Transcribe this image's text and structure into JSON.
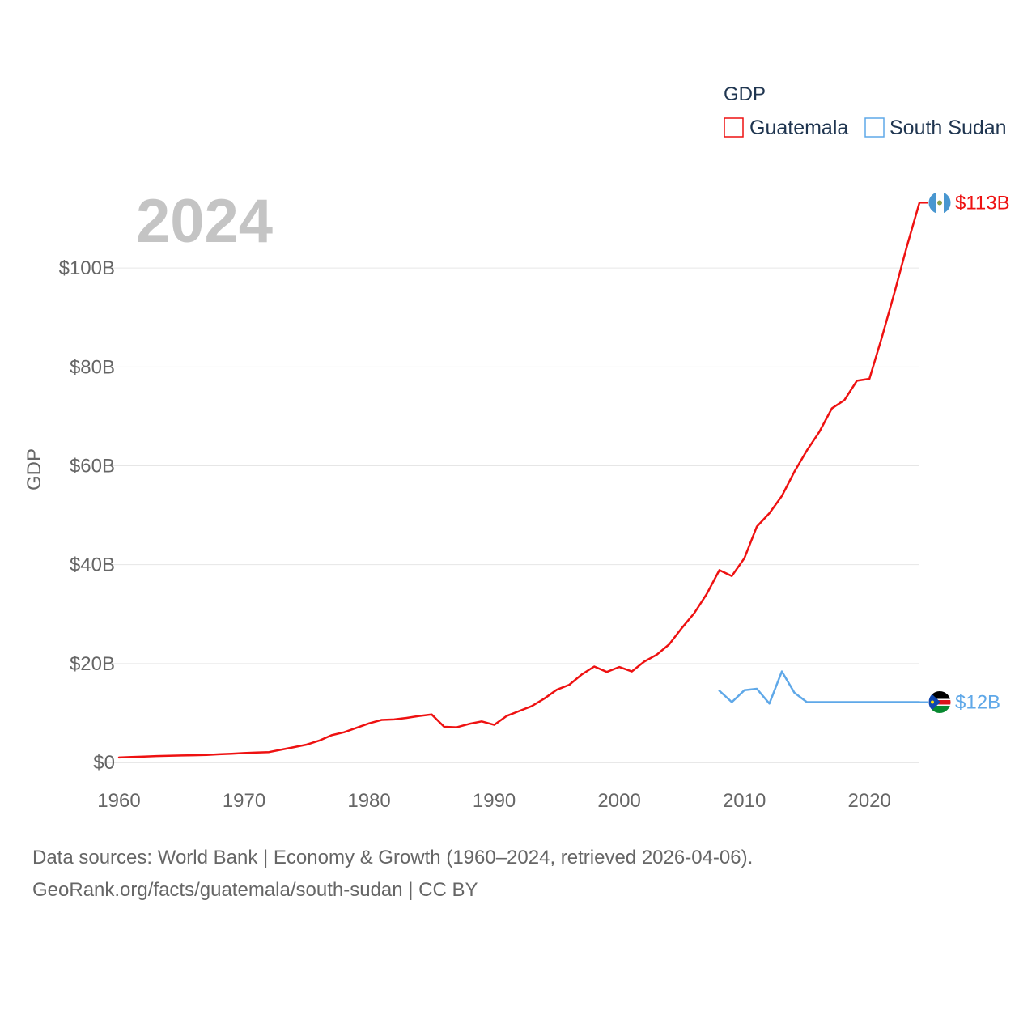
{
  "chart_data": {
    "type": "line",
    "title": "GDP",
    "year_label": "2024",
    "ylabel": "GDP",
    "xlabel": "",
    "xlim": [
      1960,
      2024
    ],
    "ylim": [
      0,
      120
    ],
    "y_unit": "billions USD",
    "x_ticks": [
      1960,
      1970,
      1980,
      1990,
      2000,
      2010,
      2020
    ],
    "x_tick_labels": [
      "1960",
      "1970",
      "1980",
      "1990",
      "2000",
      "2010",
      "2020"
    ],
    "y_ticks": [
      0,
      20,
      40,
      60,
      80,
      100
    ],
    "y_tick_labels": [
      "$0",
      "$20B",
      "$40B",
      "$60B",
      "$80B",
      "$100B"
    ],
    "legend": {
      "title": "GDP",
      "position": "top-right"
    },
    "series": [
      {
        "name": "Guatemala",
        "color": "#ee1111",
        "end_label": "$113B",
        "flag_icon": "guatemala-flag-icon",
        "x": [
          1960,
          1961,
          1962,
          1963,
          1964,
          1965,
          1966,
          1967,
          1968,
          1969,
          1970,
          1971,
          1972,
          1973,
          1974,
          1975,
          1976,
          1977,
          1978,
          1979,
          1980,
          1981,
          1982,
          1983,
          1984,
          1985,
          1986,
          1987,
          1988,
          1989,
          1990,
          1991,
          1992,
          1993,
          1994,
          1995,
          1996,
          1997,
          1998,
          1999,
          2000,
          2001,
          2002,
          2003,
          2004,
          2005,
          2006,
          2007,
          2008,
          2009,
          2010,
          2011,
          2012,
          2013,
          2014,
          2015,
          2016,
          2017,
          2018,
          2019,
          2020,
          2021,
          2022,
          2023,
          2024
        ],
        "values": [
          1.0,
          1.1,
          1.2,
          1.3,
          1.35,
          1.4,
          1.45,
          1.5,
          1.65,
          1.75,
          1.9,
          2.0,
          2.1,
          2.6,
          3.1,
          3.6,
          4.4,
          5.5,
          6.1,
          7.0,
          7.9,
          8.6,
          8.7,
          9.0,
          9.4,
          9.7,
          7.2,
          7.1,
          7.8,
          8.3,
          7.6,
          9.4,
          10.4,
          11.4,
          12.9,
          14.7,
          15.7,
          17.8,
          19.4,
          18.3,
          19.3,
          18.4,
          20.4,
          21.8,
          23.9,
          27.2,
          30.2,
          34.1,
          38.9,
          37.7,
          41.3,
          47.7,
          50.4,
          53.9,
          58.8,
          63.1,
          66.9,
          71.6,
          73.3,
          77.2,
          77.6,
          86.0,
          95.0,
          104.4,
          113.2
        ]
      },
      {
        "name": "South Sudan",
        "color": "#5fa8e8",
        "end_label": "$12B",
        "flag_icon": "south-sudan-flag-icon",
        "x": [
          2008,
          2009,
          2010,
          2011,
          2012,
          2013,
          2014,
          2015,
          2016,
          2017,
          2018,
          2019,
          2020,
          2021,
          2022,
          2023,
          2024
        ],
        "values": [
          14.5,
          12.2,
          14.6,
          14.9,
          11.9,
          18.4,
          14.1,
          12.2,
          12.2,
          12.2,
          12.2,
          12.2,
          12.2,
          12.2,
          12.2,
          12.2,
          12.2
        ]
      }
    ]
  },
  "footer": {
    "line1": "Data sources: World Bank | Economy & Growth (1960–2024, retrieved 2026-04-06).",
    "line2": "GeoRank.org/facts/guatemala/south-sudan | CC BY"
  }
}
